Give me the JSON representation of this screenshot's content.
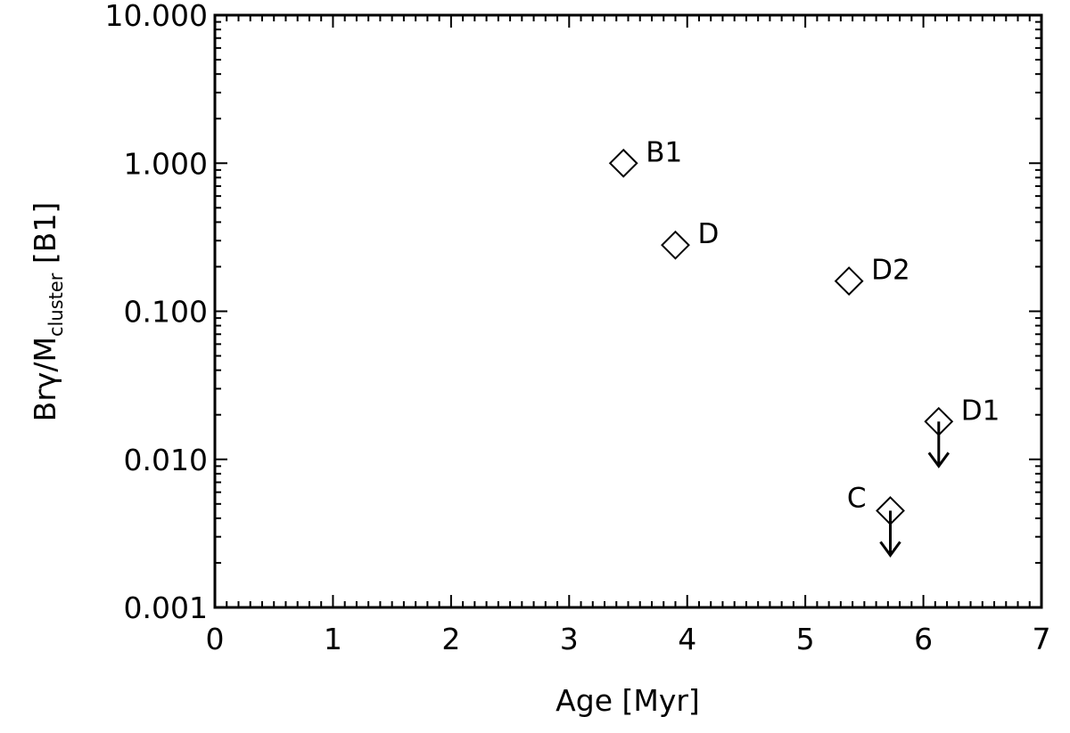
{
  "chart_data": {
    "type": "scatter",
    "xlabel": "Age [Myr]",
    "ylabel": {
      "prefix": "Brγ/M",
      "subscript": "cluster",
      "suffix": " [B1]"
    },
    "xlim": [
      0,
      7
    ],
    "ylim": [
      0.001,
      10
    ],
    "yscale": "log",
    "grid": false,
    "x_ticks": [
      "0",
      "1",
      "2",
      "3",
      "4",
      "5",
      "6",
      "7"
    ],
    "y_ticks": [
      "0.001",
      "0.010",
      "0.100",
      "1.000",
      "10.000"
    ],
    "points": [
      {
        "label": "B1",
        "x": 3.46,
        "y": 1.0,
        "upper_limit": false
      },
      {
        "label": "D",
        "x": 3.9,
        "y": 0.28,
        "upper_limit": false
      },
      {
        "label": "D2",
        "x": 5.37,
        "y": 0.16,
        "upper_limit": false
      },
      {
        "label": "D1",
        "x": 6.13,
        "y": 0.018,
        "upper_limit": true
      },
      {
        "label": "C",
        "x": 5.72,
        "y": 0.0045,
        "upper_limit": true
      }
    ]
  }
}
